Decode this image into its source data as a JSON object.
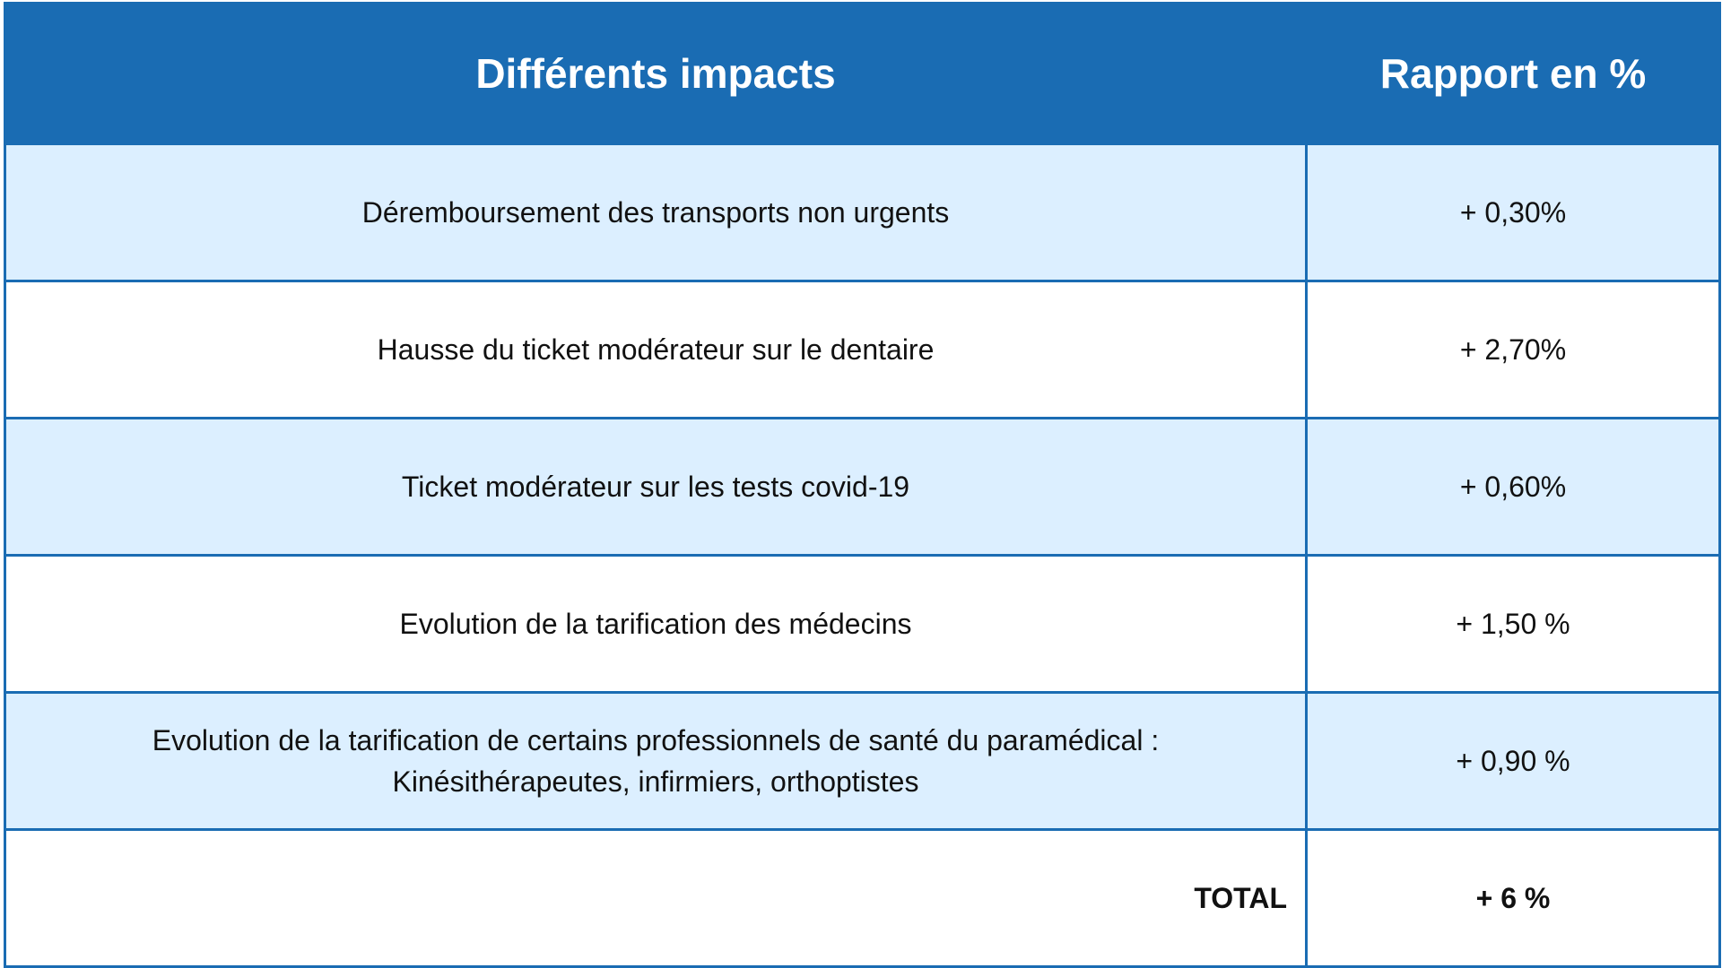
{
  "table": {
    "headers": {
      "impact": "Différents impacts",
      "ratio": "Rapport en %"
    },
    "rows": [
      {
        "impact": "Déremboursement des transports non urgents",
        "ratio": "+ 0,30%"
      },
      {
        "impact": "Hausse du ticket modérateur sur le dentaire",
        "ratio": "+ 2,70%"
      },
      {
        "impact": "Ticket modérateur sur les tests covid-19",
        "ratio": "+ 0,60%"
      },
      {
        "impact": "Evolution de la tarification des médecins",
        "ratio": "+ 1,50 %"
      },
      {
        "impact_line1": "Evolution de la tarification de certains professionnels de santé du paramédical :",
        "impact_line2": "Kinésithérapeutes, infirmiers, orthoptistes",
        "ratio": "+ 0,90 %"
      }
    ],
    "total": {
      "label": "TOTAL",
      "value": "+ 6 %"
    },
    "colors": {
      "header_bg": "#1a6cb3",
      "shaded_row_bg": "#dcefff",
      "border": "#1a6cb3"
    }
  }
}
